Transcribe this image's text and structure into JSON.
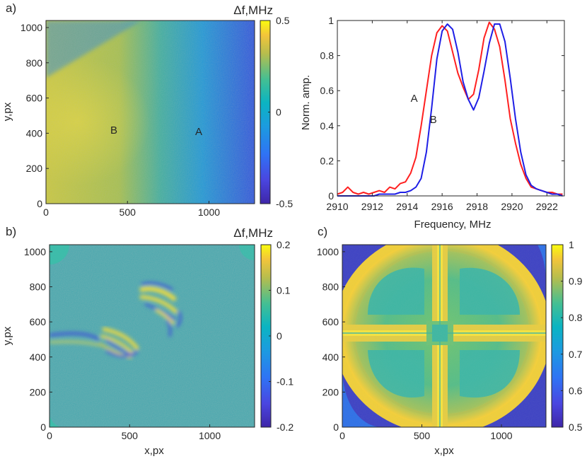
{
  "chart_data": [
    {
      "panel": "a) map",
      "type": "heatmap",
      "panel_label": "a)",
      "colorbar_title": "Δf,MHz",
      "xlim": [
        0,
        1280
      ],
      "ylim": [
        0,
        1040
      ],
      "x_ticks": [
        "0",
        "500",
        "1000"
      ],
      "x_tick_values": [
        0,
        500,
        1000
      ],
      "y_ticks": [
        "0",
        "200",
        "400",
        "600",
        "800",
        "1000"
      ],
      "y_tick_values": [
        0,
        200,
        400,
        600,
        800,
        1000
      ],
      "ylabel": "y,px",
      "xlabel": "",
      "colorbar_ticks": [
        "-0.5",
        "0",
        "0.5"
      ],
      "colorbar_values": [
        -0.5,
        0,
        0.5
      ],
      "clim": [
        -0.5,
        0.5
      ],
      "annotations": [
        {
          "text": "B",
          "x": 420,
          "y": 420
        },
        {
          "text": "A",
          "x": 950,
          "y": 410
        }
      ]
    },
    {
      "panel": "spectra",
      "type": "line",
      "xlabel": "Frequency, MHz",
      "ylabel": "Norm. amp.",
      "xlim": [
        2910,
        2923
      ],
      "ylim": [
        0,
        1
      ],
      "x_ticks": [
        "2910",
        "2912",
        "2914",
        "2916",
        "2918",
        "2920",
        "2922"
      ],
      "x_tick_values": [
        2910,
        2912,
        2914,
        2916,
        2918,
        2920,
        2922
      ],
      "y_ticks": [
        "0",
        "0.2",
        "0.4",
        "0.6",
        "0.8",
        "1"
      ],
      "y_tick_values": [
        0,
        0.2,
        0.4,
        0.6,
        0.8,
        1
      ],
      "annotations": [
        {
          "text": "A",
          "x": 2914.4,
          "y": 0.56
        },
        {
          "text": "B",
          "x": 2915.5,
          "y": 0.44
        }
      ],
      "series": [
        {
          "name": "A",
          "color": "#ff2020",
          "x": [
            2910.0,
            2910.3,
            2910.6,
            2910.9,
            2911.2,
            2911.5,
            2911.8,
            2912.1,
            2912.4,
            2912.7,
            2913.0,
            2913.3,
            2913.6,
            2913.9,
            2914.2,
            2914.5,
            2914.8,
            2915.1,
            2915.4,
            2915.7,
            2916.0,
            2916.3,
            2916.6,
            2916.9,
            2917.2,
            2917.5,
            2917.8,
            2918.1,
            2918.4,
            2918.7,
            2919.0,
            2919.3,
            2919.6,
            2919.9,
            2920.2,
            2920.5,
            2920.8,
            2921.1,
            2921.4,
            2921.7,
            2922.0,
            2922.3,
            2922.6,
            2922.9
          ],
          "y": [
            0.01,
            0.02,
            0.05,
            0.02,
            0.01,
            0.02,
            0.01,
            0.02,
            0.03,
            0.02,
            0.05,
            0.04,
            0.07,
            0.08,
            0.13,
            0.22,
            0.4,
            0.6,
            0.8,
            0.93,
            0.97,
            0.94,
            0.82,
            0.7,
            0.62,
            0.55,
            0.58,
            0.72,
            0.9,
            0.99,
            0.95,
            0.85,
            0.66,
            0.44,
            0.3,
            0.18,
            0.1,
            0.05,
            0.04,
            0.03,
            0.02,
            0.02,
            0.01,
            0.01
          ]
        },
        {
          "name": "B",
          "color": "#1f1fe6",
          "x": [
            2910.0,
            2910.3,
            2910.6,
            2910.9,
            2911.2,
            2911.5,
            2911.8,
            2912.1,
            2912.4,
            2912.7,
            2913.0,
            2913.3,
            2913.6,
            2913.9,
            2914.2,
            2914.5,
            2914.8,
            2915.1,
            2915.4,
            2915.7,
            2916.0,
            2916.3,
            2916.6,
            2916.9,
            2917.2,
            2917.5,
            2917.8,
            2918.1,
            2918.4,
            2918.7,
            2919.0,
            2919.3,
            2919.6,
            2919.9,
            2920.2,
            2920.5,
            2920.8,
            2921.1,
            2921.4,
            2921.7,
            2922.0,
            2922.3,
            2922.6,
            2922.9
          ],
          "y": [
            0.0,
            0.0,
            0.0,
            0.0,
            0.0,
            0.0,
            0.0,
            0.0,
            0.01,
            0.01,
            0.01,
            0.01,
            0.02,
            0.02,
            0.03,
            0.05,
            0.1,
            0.25,
            0.5,
            0.78,
            0.94,
            0.98,
            0.95,
            0.82,
            0.65,
            0.55,
            0.49,
            0.56,
            0.71,
            0.87,
            0.98,
            0.98,
            0.88,
            0.67,
            0.44,
            0.25,
            0.12,
            0.06,
            0.04,
            0.03,
            0.02,
            0.01,
            0.01,
            0.0
          ]
        }
      ]
    },
    {
      "panel": "b) map",
      "type": "heatmap",
      "panel_label": "b)",
      "colorbar_title": "Δf,MHz",
      "xlim": [
        0,
        1280
      ],
      "ylim": [
        0,
        1040
      ],
      "x_ticks": [
        "0",
        "500",
        "1000"
      ],
      "x_tick_values": [
        0,
        500,
        1000
      ],
      "y_ticks": [
        "0",
        "200",
        "400",
        "600",
        "800",
        "1000"
      ],
      "y_tick_values": [
        0,
        200,
        400,
        600,
        800,
        1000
      ],
      "xlabel": "x,px",
      "ylabel": "y,px",
      "colorbar_ticks": [
        "-0.2",
        "-0.1",
        "0",
        "0.1",
        "0.2"
      ],
      "colorbar_values": [
        -0.2,
        -0.1,
        0,
        0.1,
        0.2
      ],
      "clim": [
        -0.2,
        0.2
      ]
    },
    {
      "panel": "c) map",
      "type": "heatmap",
      "panel_label": "c)",
      "xlim": [
        0,
        1280
      ],
      "ylim": [
        0,
        1040
      ],
      "x_ticks": [
        "0",
        "500",
        "1000"
      ],
      "x_tick_values": [
        0,
        500,
        1000
      ],
      "y_ticks": [
        "0",
        "200",
        "400",
        "600",
        "800",
        "1000"
      ],
      "y_tick_values": [
        0,
        200,
        400,
        600,
        800,
        1000
      ],
      "xlabel": "x,px",
      "ylabel": "",
      "colorbar_ticks": [
        "0.5",
        "0.6",
        "0.7",
        "0.8",
        "0.9",
        "1"
      ],
      "colorbar_values": [
        0.5,
        0.6,
        0.7,
        0.8,
        0.9,
        1.0
      ],
      "clim": [
        0.5,
        1.0
      ]
    }
  ]
}
